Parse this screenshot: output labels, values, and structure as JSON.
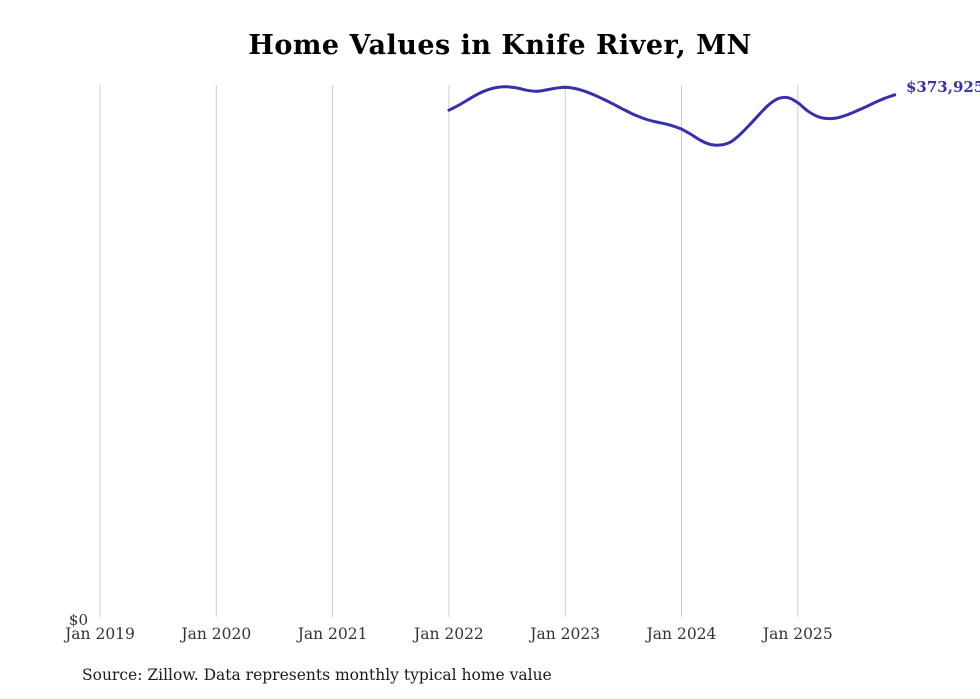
{
  "page": {
    "title": "Home Values in Knife River, MN",
    "source_note": "Source: Zillow. Data represents monthly typical home value",
    "y_zero_label": "$0",
    "end_value_label": "$373,925"
  },
  "colors": {
    "line": "#3431aa",
    "end_label": "#3431aa",
    "gridline": "#cccccc",
    "tick_text": "#333333",
    "title_text": "#000000"
  },
  "chart_data": {
    "type": "line",
    "title": "Home Values in Knife River, MN",
    "xlabel": "",
    "ylabel": "",
    "ylim": [
      0,
      400000
    ],
    "grid": "vertical-only",
    "legend": "none",
    "x_ticks": [
      "Jan 2019",
      "Jan 2020",
      "Jan 2021",
      "Jan 2022",
      "Jan 2023",
      "Jan 2024",
      "Jan 2025"
    ],
    "end_label": "$373,925",
    "series": [
      {
        "name": "Monthly typical home value",
        "unit": "USD",
        "months": [
          "2022-01",
          "2022-02",
          "2022-03",
          "2022-04",
          "2022-05",
          "2022-06",
          "2022-07",
          "2022-08",
          "2022-09",
          "2022-10",
          "2022-11",
          "2022-12",
          "2023-01",
          "2023-02",
          "2023-03",
          "2023-04",
          "2023-05",
          "2023-06",
          "2023-07",
          "2023-08",
          "2023-09",
          "2023-10",
          "2023-11",
          "2023-12",
          "2024-01",
          "2024-02",
          "2024-03",
          "2024-04",
          "2024-05",
          "2024-06",
          "2024-07",
          "2024-08",
          "2024-09",
          "2024-10",
          "2024-11",
          "2024-12",
          "2025-01",
          "2025-02",
          "2025-03",
          "2025-04",
          "2025-05",
          "2025-06",
          "2025-07",
          "2025-08",
          "2025-09",
          "2025-10",
          "2025-11"
        ],
        "values": [
          363000,
          366500,
          370500,
          374500,
          377500,
          379200,
          379600,
          378800,
          377200,
          376400,
          377300,
          378600,
          379300,
          378400,
          376500,
          373800,
          370600,
          367200,
          363600,
          360200,
          357400,
          355300,
          353800,
          352100,
          349600,
          345800,
          341500,
          338700,
          338300,
          340200,
          345500,
          352400,
          359800,
          366800,
          371300,
          371900,
          368300,
          362600,
          358600,
          357100,
          357500,
          359500,
          362300,
          365300,
          368600,
          371500,
          373925
        ]
      }
    ]
  }
}
